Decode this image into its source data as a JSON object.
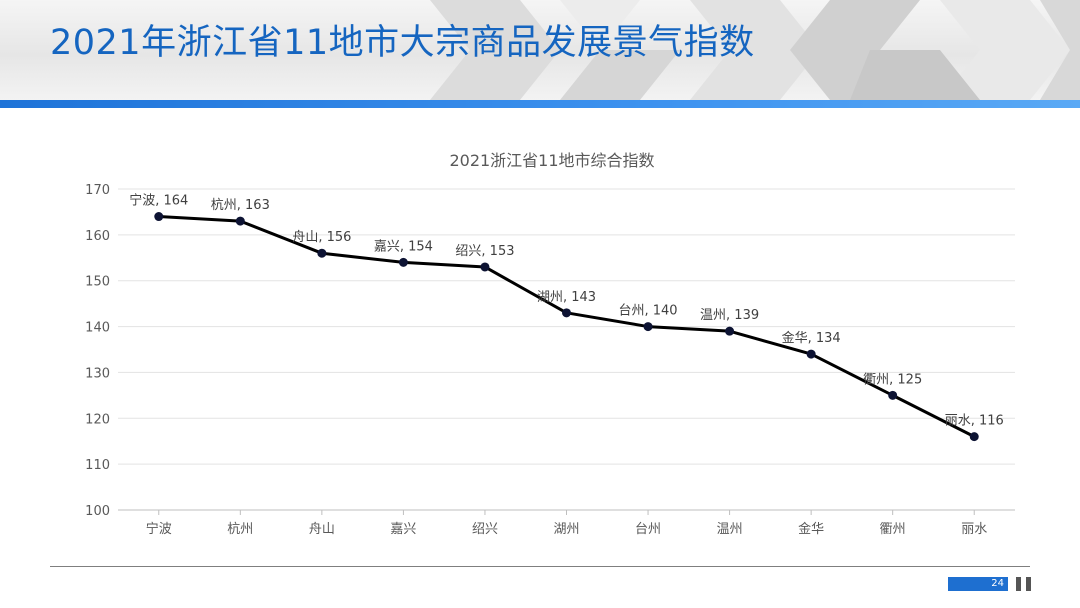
{
  "slide": {
    "title": "2021年浙江省11地市大宗商品发展景气指数",
    "page_number": "24",
    "accent_color": "#1565c0"
  },
  "chart_data": {
    "type": "line",
    "title": "2021浙江省11地市综合指数",
    "xlabel": "",
    "ylabel": "",
    "categories": [
      "宁波",
      "杭州",
      "舟山",
      "嘉兴",
      "绍兴",
      "湖州",
      "台州",
      "温州",
      "金华",
      "衢州",
      "丽水"
    ],
    "values": [
      164,
      163,
      156,
      154,
      153,
      143,
      140,
      139,
      134,
      125,
      116
    ],
    "data_labels": [
      "宁波, 164",
      "杭州, 163",
      "舟山, 156",
      "嘉兴, 154",
      "绍兴, 153",
      "湖州, 143",
      "台州, 140",
      "温州, 139",
      "金华, 134",
      "衢州, 125",
      "丽水, 116"
    ],
    "ylim": [
      100,
      170
    ],
    "yticks": [
      100,
      110,
      120,
      130,
      140,
      150,
      160,
      170
    ],
    "grid": true,
    "legend": "none",
    "line_color": "#000000",
    "marker_color": "#0d1333"
  }
}
